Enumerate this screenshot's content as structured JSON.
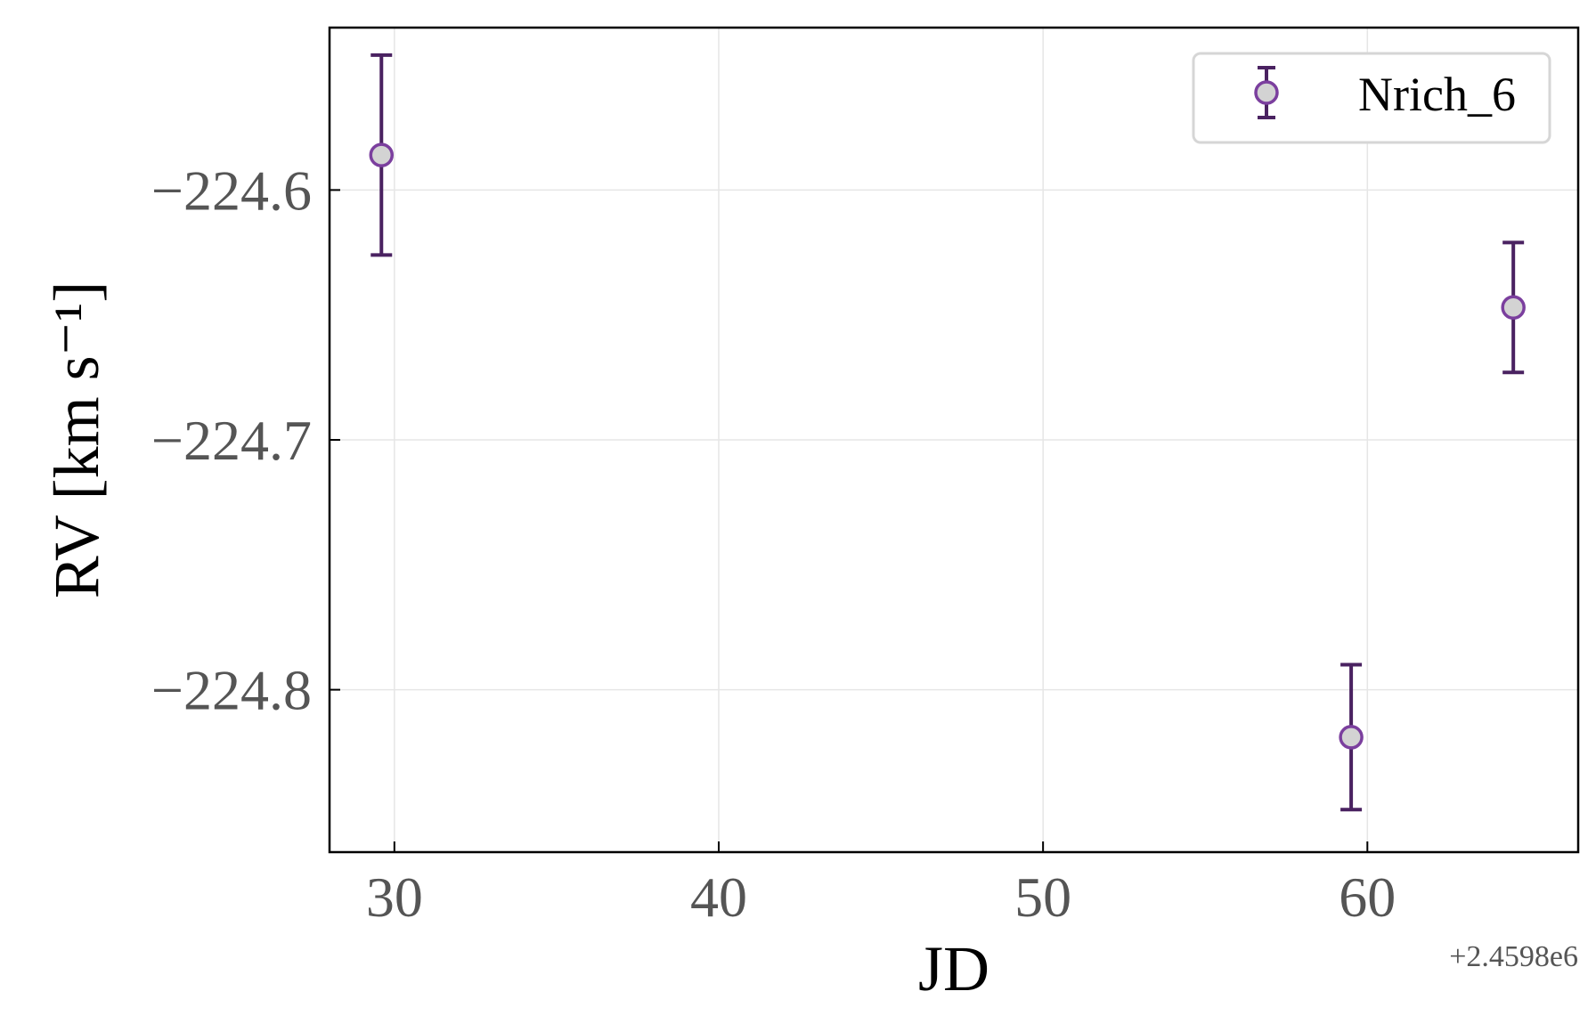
{
  "chart_data": {
    "type": "scatter",
    "xlabel": "JD",
    "ylabel": "RV [km s⁻¹]",
    "x_offset_label": "+2.4598e6",
    "x_offset": 2459800,
    "xlim": [
      2459828,
      2459866.5
    ],
    "ylim": [
      -224.865,
      -224.535
    ],
    "x_ticks": [
      2459830,
      2459840,
      2459850,
      2459860
    ],
    "x_tick_labels": [
      "30",
      "40",
      "50",
      "60"
    ],
    "y_ticks": [
      -224.6,
      -224.7,
      -224.8
    ],
    "y_tick_labels": [
      "−224.6",
      "−224.7",
      "−224.8"
    ],
    "grid": true,
    "legend_position": "upper-right",
    "series": [
      {
        "name": "Nrich_6",
        "marker_face": "#d3d3d3",
        "marker_edge": "#7b3f9e",
        "errorbar_color": "#4a2261",
        "points": [
          {
            "x": 2459829.6,
            "y": -224.586,
            "yerr": 0.04
          },
          {
            "x": 2459859.5,
            "y": -224.819,
            "yerr": 0.029
          },
          {
            "x": 2459864.5,
            "y": -224.647,
            "yerr": 0.026
          }
        ]
      }
    ]
  }
}
